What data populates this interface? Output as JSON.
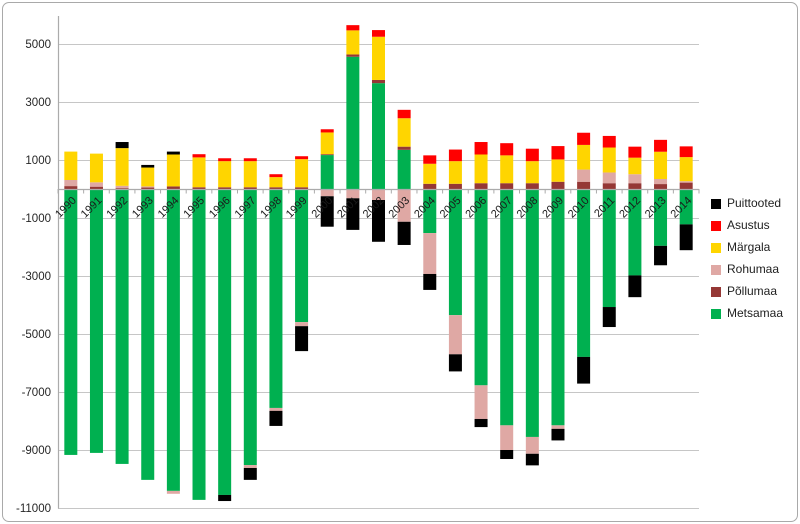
{
  "chart_data": {
    "type": "bar",
    "stacked": true,
    "title": "",
    "xlabel": "",
    "ylabel": "",
    "x": [
      "1990",
      "1991",
      "1992",
      "1993",
      "1994",
      "1995",
      "1996",
      "1997",
      "1998",
      "1999",
      "2000",
      "2001",
      "2002",
      "2003",
      "2004",
      "2005",
      "2006",
      "2007",
      "2008",
      "2009",
      "2010",
      "2011",
      "2012",
      "2013",
      "2014"
    ],
    "series": [
      {
        "name": "Metsamaa",
        "color": "#00B050",
        "values": [
          -9170,
          -9100,
          -9480,
          -10030,
          -10410,
          -10720,
          -10550,
          -9520,
          -7550,
          -4590,
          1170,
          4560,
          3650,
          1350,
          -1520,
          -4350,
          -6770,
          -8150,
          -8550,
          -8150,
          -5790,
          -4070,
          -2980,
          -1960,
          -1220
        ]
      },
      {
        "name": "Põllumaa",
        "color": "#953735",
        "values": [
          100,
          80,
          30,
          50,
          90,
          60,
          60,
          60,
          60,
          60,
          30,
          80,
          110,
          110,
          180,
          180,
          200,
          200,
          200,
          250,
          250,
          200,
          200,
          170,
          220
        ]
      },
      {
        "name": "Rohumaa",
        "color": "#DFA8A4",
        "values": [
          210,
          150,
          80,
          40,
          -100,
          0,
          0,
          -100,
          -100,
          -140,
          -250,
          -320,
          -380,
          -1130,
          -1410,
          -1350,
          -1160,
          -850,
          -580,
          -120,
          420,
          370,
          310,
          175,
          50
        ]
      },
      {
        "name": "Märgala",
        "color": "#FFD500",
        "values": [
          980,
          990,
          1300,
          650,
          1100,
          1030,
          900,
          900,
          350,
          970,
          750,
          830,
          1490,
          980,
          690,
          780,
          990,
          960,
          760,
          770,
          850,
          860,
          570,
          940,
          830
        ]
      },
      {
        "name": "Asustus",
        "color": "#FF0000",
        "values": [
          0,
          0,
          0,
          0,
          0,
          110,
          100,
          100,
          100,
          100,
          110,
          180,
          230,
          290,
          290,
          400,
          430,
          420,
          430,
          460,
          420,
          400,
          380,
          410,
          370
        ]
      },
      {
        "name": "Puittooted",
        "color": "#000000",
        "values": [
          0,
          0,
          210,
          90,
          100,
          0,
          -210,
          -410,
          -520,
          -860,
          -1050,
          -1090,
          -1440,
          -800,
          -550,
          -590,
          -280,
          -310,
          -400,
          -400,
          -920,
          -690,
          -750,
          -670,
          -890
        ]
      }
    ],
    "y_axis": {
      "min": -11000,
      "max": 5000,
      "tick_step": 2000,
      "ticks": [
        5000,
        3000,
        1000,
        -1000,
        -3000,
        -5000,
        -7000,
        -9000,
        -11000
      ],
      "tick_labels": [
        "5000",
        "3000",
        "1000",
        "-1000",
        "-3000",
        "-5000",
        "-7000",
        "-9000",
        "-11000"
      ]
    },
    "grid": true,
    "legend": {
      "position": "right",
      "items": [
        {
          "label": "Puittooted",
          "color": "#000000"
        },
        {
          "label": "Asustus",
          "color": "#FF0000"
        },
        {
          "label": "Märgala",
          "color": "#FFD500"
        },
        {
          "label": "Rohumaa",
          "color": "#DFA8A4"
        },
        {
          "label": "Põllumaa",
          "color": "#953735"
        },
        {
          "label": "Metsamaa",
          "color": "#00B050"
        }
      ]
    },
    "style_colors": {
      "background": "#FFFFFF",
      "chart_border": "#A9A9A9",
      "gridline": "#C6C6C6",
      "axis_line": "#ABABAB",
      "tick_text": "#262626",
      "label_text": "#1A1A1A"
    }
  }
}
